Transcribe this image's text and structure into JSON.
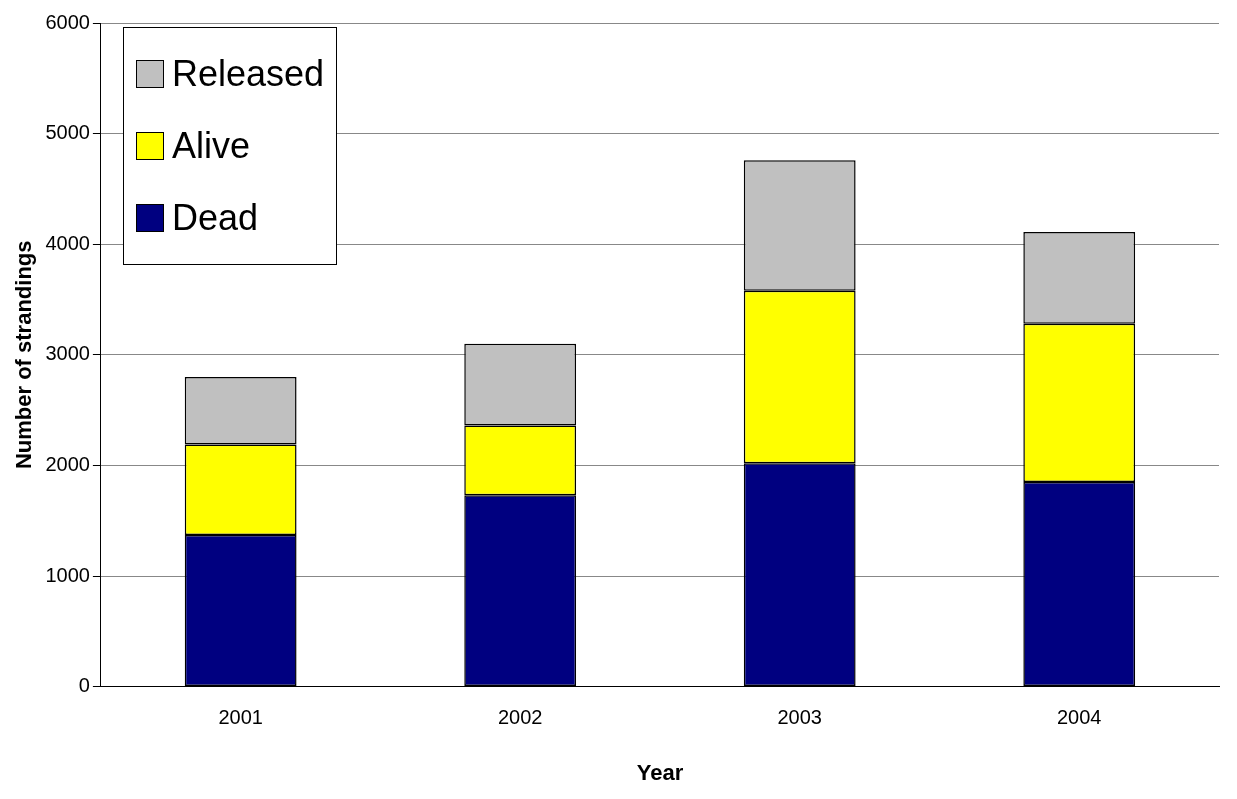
{
  "chart_data": {
    "type": "bar",
    "stacked": true,
    "xlabel": "Year",
    "ylabel": "Number of strandings",
    "categories": [
      "2001",
      "2002",
      "2003",
      "2004"
    ],
    "series": [
      {
        "name": "Dead",
        "color": "#000080",
        "values": [
          1370,
          1730,
          2020,
          1850
        ]
      },
      {
        "name": "Alive",
        "color": "#ffff00",
        "values": [
          820,
          630,
          1560,
          1430
        ]
      },
      {
        "name": "Released",
        "color": "#c0c0c0",
        "values": [
          610,
          740,
          1180,
          830
        ]
      }
    ],
    "ylim": [
      0,
      6000
    ],
    "yticks": [
      0,
      1000,
      2000,
      3000,
      4000,
      5000,
      6000
    ],
    "grid": "y",
    "legend": "top left"
  }
}
